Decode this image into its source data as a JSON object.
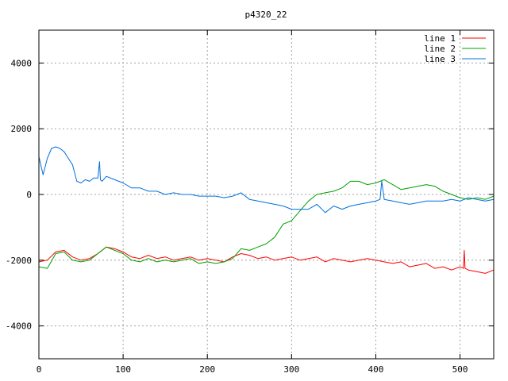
{
  "chart_data": {
    "type": "line",
    "title": "p4320_22",
    "xlabel": "",
    "ylabel": "",
    "xlim": [
      0,
      540
    ],
    "ylim": [
      -5000,
      5000
    ],
    "xticks": [
      0,
      100,
      200,
      300,
      400,
      500
    ],
    "yticks": [
      -4000,
      -2000,
      0,
      2000,
      4000
    ],
    "grid": true,
    "legend_position": "top-right",
    "series": [
      {
        "name": "line 1",
        "color": "#ff0000",
        "x": [
          0,
          10,
          20,
          30,
          40,
          50,
          60,
          70,
          80,
          90,
          100,
          110,
          120,
          130,
          140,
          150,
          160,
          170,
          180,
          190,
          200,
          210,
          220,
          230,
          240,
          250,
          260,
          270,
          280,
          290,
          300,
          310,
          320,
          330,
          340,
          350,
          360,
          370,
          380,
          390,
          400,
          410,
          420,
          430,
          440,
          450,
          460,
          470,
          480,
          490,
          500,
          504,
          505,
          506,
          510,
          520,
          530,
          540
        ],
        "y": [
          -2050,
          -2000,
          -1750,
          -1700,
          -1900,
          -2000,
          -1950,
          -1800,
          -1600,
          -1650,
          -1750,
          -1900,
          -1950,
          -1850,
          -1950,
          -1900,
          -2000,
          -1950,
          -1900,
          -2000,
          -1950,
          -2000,
          -2050,
          -1900,
          -1800,
          -1850,
          -1950,
          -1900,
          -2000,
          -1950,
          -1900,
          -2000,
          -1950,
          -1900,
          -2050,
          -1950,
          -2000,
          -2050,
          -2000,
          -1950,
          -2000,
          -2050,
          -2100,
          -2050,
          -2200,
          -2150,
          -2100,
          -2250,
          -2200,
          -2300,
          -2200,
          -2250,
          -1700,
          -2250,
          -2300,
          -2350,
          -2400,
          -2300
        ]
      },
      {
        "name": "line 2",
        "color": "#00a000",
        "x": [
          0,
          10,
          20,
          30,
          40,
          50,
          60,
          70,
          80,
          90,
          100,
          110,
          120,
          130,
          140,
          150,
          160,
          170,
          180,
          190,
          200,
          210,
          220,
          230,
          235,
          240,
          250,
          260,
          270,
          280,
          290,
          300,
          310,
          320,
          330,
          340,
          350,
          360,
          370,
          380,
          390,
          400,
          410,
          420,
          430,
          440,
          450,
          460,
          470,
          480,
          490,
          500,
          510,
          520,
          530,
          540
        ],
        "y": [
          -2200,
          -2250,
          -1800,
          -1750,
          -2000,
          -2050,
          -2000,
          -1800,
          -1600,
          -1700,
          -1800,
          -2000,
          -2050,
          -1950,
          -2050,
          -2000,
          -2050,
          -2000,
          -1950,
          -2100,
          -2050,
          -2100,
          -2050,
          -1950,
          -1800,
          -1650,
          -1700,
          -1600,
          -1500,
          -1300,
          -900,
          -800,
          -500,
          -200,
          0,
          50,
          100,
          200,
          400,
          400,
          300,
          350,
          450,
          300,
          150,
          200,
          250,
          300,
          250,
          100,
          0,
          -100,
          -150,
          -100,
          -150,
          -50
        ]
      },
      {
        "name": "line 3",
        "color": "#0070e0",
        "x": [
          0,
          5,
          10,
          15,
          20,
          25,
          30,
          35,
          40,
          45,
          50,
          55,
          60,
          65,
          70,
          72,
          73,
          75,
          80,
          90,
          100,
          110,
          120,
          130,
          140,
          150,
          160,
          170,
          180,
          190,
          200,
          210,
          220,
          230,
          240,
          250,
          260,
          270,
          280,
          290,
          300,
          310,
          320,
          330,
          340,
          350,
          360,
          370,
          380,
          390,
          400,
          405,
          407,
          410,
          420,
          430,
          440,
          450,
          460,
          470,
          480,
          490,
          500,
          510,
          520,
          530,
          540
        ],
        "y": [
          1150,
          600,
          1100,
          1400,
          1450,
          1400,
          1300,
          1100,
          900,
          400,
          350,
          450,
          400,
          500,
          500,
          1000,
          450,
          400,
          550,
          450,
          350,
          200,
          200,
          100,
          100,
          0,
          50,
          0,
          0,
          -50,
          -50,
          -50,
          -100,
          -50,
          50,
          -150,
          -200,
          -250,
          -300,
          -350,
          -450,
          -450,
          -450,
          -300,
          -550,
          -350,
          -450,
          -350,
          -300,
          -250,
          -200,
          -150,
          400,
          -150,
          -200,
          -250,
          -300,
          -250,
          -200,
          -200,
          -200,
          -150,
          -200,
          -100,
          -150,
          -200,
          -150
        ]
      }
    ]
  }
}
